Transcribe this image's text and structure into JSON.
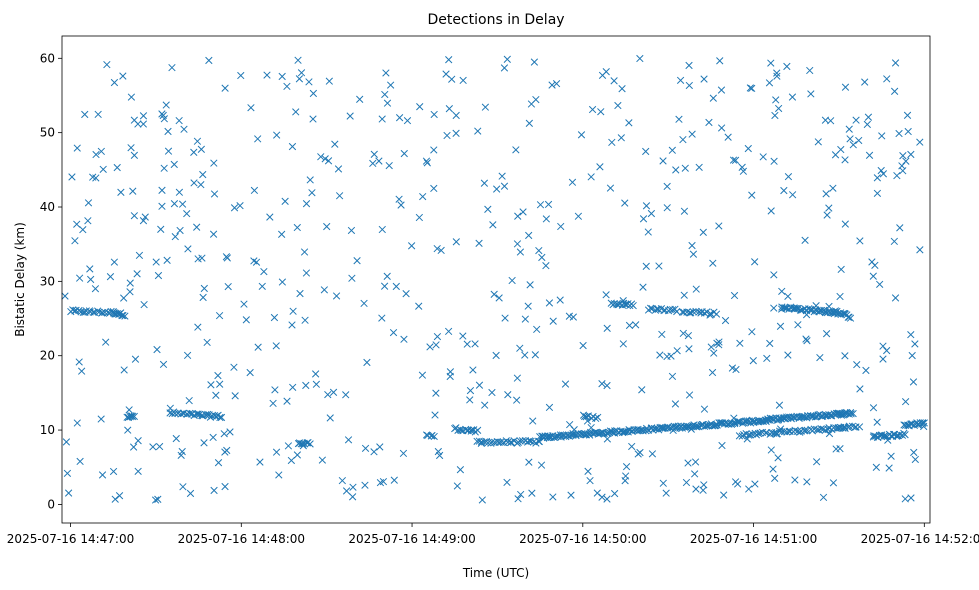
{
  "chart_data": {
    "type": "scatter",
    "title": "Detections in Delay",
    "xlabel": "Time (UTC)",
    "ylabel": "Bistatic Delay (km)",
    "marker": "x",
    "color": "#1f77b4",
    "grid": false,
    "legend": "none",
    "xlim": [
      "2025-07-16 14:46:57",
      "2025-07-16 14:52:02"
    ],
    "ylim": [
      -2.5,
      63
    ],
    "x_ticks": [
      "2025-07-16 14:47:00",
      "2025-07-16 14:48:00",
      "2025-07-16 14:49:00",
      "2025-07-16 14:50:00",
      "2025-07-16 14:51:00",
      "2025-07-16 14:52:00"
    ],
    "y_ticks": [
      0,
      10,
      20,
      30,
      40,
      50,
      60
    ],
    "tracks": [
      {
        "name": "",
        "description": "dense track",
        "x_start": "2025-07-16 14:47:00",
        "y_start": 26.0,
        "x_end": "2025-07-16 14:47:15",
        "y_end": 25.8,
        "count": 22
      },
      {
        "name": "",
        "description": "dense track",
        "x_start": "2025-07-16 14:47:15",
        "y_start": 25.8,
        "x_end": "2025-07-16 14:47:19",
        "y_end": 25.5,
        "count": 10
      },
      {
        "name": "",
        "description": "dense track",
        "x_start": "2025-07-16 14:47:20",
        "y_start": 11.8,
        "x_end": "2025-07-16 14:47:22",
        "y_end": 11.8,
        "count": 6
      },
      {
        "name": "",
        "description": "dense track",
        "x_start": "2025-07-16 14:47:35",
        "y_start": 12.3,
        "x_end": "2025-07-16 14:47:53",
        "y_end": 11.8,
        "count": 30
      },
      {
        "name": "",
        "description": "dense track",
        "x_start": "2025-07-16 14:48:20",
        "y_start": 8.2,
        "x_end": "2025-07-16 14:48:24",
        "y_end": 8.2,
        "count": 8
      },
      {
        "name": "",
        "description": "dense track",
        "x_start": "2025-07-16 14:49:15",
        "y_start": 10.2,
        "x_end": "2025-07-16 14:49:23",
        "y_end": 9.8,
        "count": 14
      },
      {
        "name": "",
        "description": "dense track",
        "x_start": "2025-07-16 14:49:23",
        "y_start": 8.4,
        "x_end": "2025-07-16 14:49:45",
        "y_end": 8.4,
        "count": 30
      },
      {
        "name": "",
        "description": "dense track",
        "x_start": "2025-07-16 14:49:45",
        "y_start": 9.0,
        "x_end": "2025-07-16 14:51:05",
        "y_end": 11.3,
        "count": 170
      },
      {
        "name": "",
        "description": "dense track",
        "x_start": "2025-07-16 14:51:05",
        "y_start": 11.4,
        "x_end": "2025-07-16 14:51:35",
        "y_end": 12.3,
        "count": 70
      },
      {
        "name": "",
        "description": "dense track",
        "x_start": "2025-07-16 14:50:10",
        "y_start": 27.0,
        "x_end": "2025-07-16 14:50:18",
        "y_end": 26.8,
        "count": 14
      },
      {
        "name": "",
        "description": "dense track",
        "x_start": "2025-07-16 14:50:23",
        "y_start": 26.3,
        "x_end": "2025-07-16 14:50:33",
        "y_end": 26.1,
        "count": 14
      },
      {
        "name": "",
        "description": "dense track",
        "x_start": "2025-07-16 14:50:35",
        "y_start": 26.0,
        "x_end": "2025-07-16 14:50:47",
        "y_end": 25.7,
        "count": 16
      },
      {
        "name": "",
        "description": "dense track",
        "x_start": "2025-07-16 14:51:10",
        "y_start": 26.5,
        "x_end": "2025-07-16 14:51:29",
        "y_end": 25.8,
        "count": 40
      },
      {
        "name": "",
        "description": "dense track",
        "x_start": "2025-07-16 14:51:29",
        "y_start": 25.9,
        "x_end": "2025-07-16 14:51:34",
        "y_end": 25.2,
        "count": 12
      },
      {
        "name": "",
        "description": "dense track",
        "x_start": "2025-07-16 14:50:55",
        "y_start": 9.3,
        "x_end": "2025-07-16 14:51:32",
        "y_end": 10.3,
        "count": 50
      },
      {
        "name": "",
        "description": "dense track",
        "x_start": "2025-07-16 14:51:30",
        "y_start": 10.4,
        "x_end": "2025-07-16 14:51:37",
        "y_end": 10.4,
        "count": 10
      },
      {
        "name": "",
        "description": "dense track",
        "x_start": "2025-07-16 14:51:42",
        "y_start": 9.1,
        "x_end": "2025-07-16 14:51:53",
        "y_end": 9.4,
        "count": 24
      },
      {
        "name": "",
        "description": "dense track",
        "x_start": "2025-07-16 14:51:53",
        "y_start": 10.6,
        "x_end": "2025-07-16 14:52:00",
        "y_end": 11.0,
        "count": 16
      },
      {
        "name": "",
        "description": "dense track",
        "x_start": "2025-07-16 14:50:00",
        "y_start": 11.9,
        "x_end": "2025-07-16 14:50:05",
        "y_end": 11.6,
        "count": 8
      },
      {
        "name": "",
        "description": "dense track",
        "x_start": "2025-07-16 14:49:05",
        "y_start": 9.4,
        "x_end": "2025-07-16 14:49:08",
        "y_end": 9.2,
        "count": 5
      }
    ],
    "scattered": {
      "count": 620,
      "x_range": [
        "2025-07-16 14:46:58",
        "2025-07-16 14:52:00"
      ],
      "y_range": [
        0.5,
        60
      ]
    }
  }
}
